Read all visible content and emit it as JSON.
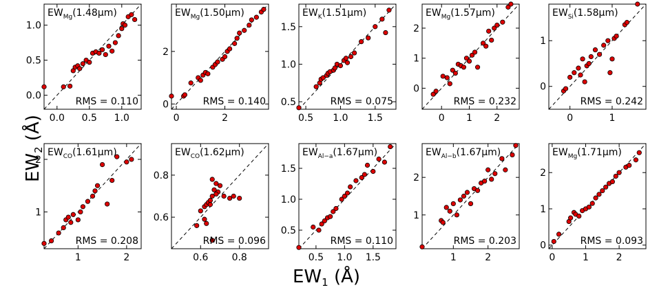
{
  "figure": {
    "ylabel_main": "EW",
    "ylabel_sub": "2",
    "ylabel_unit": "(Å)",
    "xlabel_main": "EW",
    "xlabel_sub": "1",
    "xlabel_unit": "(Å)"
  },
  "chart_data": [
    {
      "type": "scatter",
      "title_main": "EW",
      "title_sub": "Mg",
      "title_tail": "(1.48μm)",
      "rms_label": "RMS = 0.110",
      "xlim": [
        -0.2,
        1.3
      ],
      "ylim": [
        -0.2,
        1.3
      ],
      "xticks": [
        0.0,
        0.5,
        1.0
      ],
      "yticks": [
        0.0,
        0.5,
        1.0
      ],
      "xtick_labels": [
        "0.0",
        "0.5",
        "1.0"
      ],
      "ytick_labels": [
        "0.0",
        "0.5",
        "1.0"
      ],
      "x": [
        -0.2,
        0.1,
        0.2,
        0.25,
        0.28,
        0.32,
        0.35,
        0.4,
        0.45,
        0.5,
        0.55,
        0.6,
        0.65,
        0.7,
        0.75,
        0.8,
        0.85,
        0.9,
        0.95,
        1.0,
        1.02,
        1.05,
        1.1,
        1.15,
        1.2
      ],
      "y": [
        0.12,
        0.12,
        0.13,
        0.35,
        0.4,
        0.42,
        0.38,
        0.45,
        0.5,
        0.47,
        0.6,
        0.62,
        0.6,
        0.65,
        0.58,
        0.7,
        0.63,
        0.75,
        0.85,
        0.95,
        1.02,
        1.0,
        1.12,
        1.15,
        1.08
      ]
    },
    {
      "type": "scatter",
      "title_main": "EW",
      "title_sub": "Mg",
      "title_tail": "(1.50μm)",
      "rms_label": "RMS = 0.140",
      "xlim": [
        -0.2,
        3.8
      ],
      "ylim": [
        -0.2,
        3.8
      ],
      "xticks": [
        0,
        2
      ],
      "yticks": [
        0,
        2
      ],
      "xtick_labels": [
        "0",
        "2"
      ],
      "ytick_labels": [
        "0",
        "2"
      ],
      "x": [
        -0.2,
        0.3,
        0.35,
        0.6,
        0.9,
        1.0,
        1.1,
        1.2,
        1.3,
        1.5,
        1.6,
        1.7,
        1.9,
        2.0,
        2.1,
        2.2,
        2.4,
        2.5,
        2.6,
        2.8,
        3.0,
        3.1,
        3.3,
        3.5,
        3.6
      ],
      "y": [
        0.3,
        0.3,
        0.35,
        0.8,
        1.0,
        0.9,
        1.1,
        1.2,
        1.15,
        1.4,
        1.5,
        1.6,
        1.7,
        1.8,
        2.0,
        2.1,
        2.3,
        2.5,
        2.7,
        2.8,
        3.0,
        3.2,
        3.3,
        3.5,
        3.6
      ]
    },
    {
      "type": "scatter",
      "title_main": "EW",
      "title_sub": "K",
      "title_tail": "(1.51μm)",
      "rms_label": "RMS = 0.075",
      "xlim": [
        0.4,
        1.8
      ],
      "ylim": [
        0.4,
        1.8
      ],
      "xticks": [
        0.5,
        1.0,
        1.5
      ],
      "yticks": [
        0.5,
        1.0,
        1.5
      ],
      "xtick_labels": [
        "0.5",
        "1.0",
        "1.5"
      ],
      "ytick_labels": [
        "0.5",
        "1.0",
        "1.5"
      ],
      "x": [
        0.4,
        0.65,
        0.7,
        0.72,
        0.75,
        0.8,
        0.82,
        0.85,
        0.9,
        0.92,
        0.95,
        1.0,
        1.05,
        1.08,
        1.1,
        1.15,
        1.2,
        1.3,
        1.4,
        1.5,
        1.6,
        1.65,
        1.7
      ],
      "y": [
        0.42,
        0.7,
        0.75,
        0.8,
        0.82,
        0.85,
        0.88,
        0.9,
        0.92,
        0.95,
        1.0,
        0.98,
        1.05,
        1.08,
        1.02,
        1.1,
        1.15,
        1.3,
        1.35,
        1.5,
        1.6,
        1.42,
        1.72
      ]
    },
    {
      "type": "scatter",
      "title_main": "EW",
      "title_sub": "Mg",
      "title_tail": "(1.57μm)",
      "rms_label": "RMS = 0.232",
      "xlim": [
        -0.7,
        2.8
      ],
      "ylim": [
        -0.7,
        2.8
      ],
      "xticks": [
        0,
        1,
        2
      ],
      "yticks": [
        0,
        1,
        2
      ],
      "xtick_labels": [
        "0",
        "1",
        "2"
      ],
      "ytick_labels": [
        "0",
        "1",
        "2"
      ],
      "x": [
        -0.3,
        -0.2,
        0.05,
        0.2,
        0.3,
        0.4,
        0.5,
        0.6,
        0.7,
        0.8,
        0.9,
        1.0,
        1.1,
        1.2,
        1.3,
        1.5,
        1.6,
        1.7,
        1.8,
        1.9,
        2.0,
        2.2,
        2.4,
        2.5
      ],
      "y": [
        -0.2,
        -0.1,
        0.4,
        0.35,
        0.15,
        0.6,
        0.5,
        0.8,
        0.75,
        0.7,
        1.0,
        0.9,
        1.1,
        1.2,
        0.7,
        1.5,
        1.4,
        1.9,
        1.6,
        2.0,
        2.1,
        2.2,
        2.7,
        2.8
      ]
    },
    {
      "type": "scatter",
      "title_main": "EW",
      "title_sub": "Si",
      "title_tail": "(1.58μm)",
      "rms_label": "RMS = 0.242",
      "xlim": [
        -0.5,
        1.8
      ],
      "ylim": [
        -0.5,
        1.8
      ],
      "xticks": [
        0,
        1
      ],
      "yticks": [
        0,
        1
      ],
      "xtick_labels": [
        "0",
        "1"
      ],
      "ytick_labels": [
        "0",
        "1"
      ],
      "x": [
        -0.15,
        -0.1,
        0.0,
        0.1,
        0.2,
        0.25,
        0.3,
        0.35,
        0.4,
        0.45,
        0.5,
        0.6,
        0.7,
        0.8,
        0.9,
        0.95,
        1.0,
        1.05,
        1.1,
        1.3,
        1.35,
        1.6
      ],
      "y": [
        -0.1,
        -0.05,
        0.2,
        0.3,
        0.4,
        0.25,
        0.6,
        0.1,
        0.45,
        0.5,
        0.65,
        0.8,
        0.7,
        0.9,
        1.0,
        0.3,
        0.6,
        1.05,
        1.1,
        1.35,
        1.4,
        1.8
      ]
    },
    {
      "type": "scatter",
      "title_main": "EW",
      "title_sub": "CO",
      "title_tail": "(1.61μm)",
      "rms_label": "RMS = 0.208",
      "xlim": [
        0.3,
        2.3
      ],
      "ylim": [
        0.3,
        2.3
      ],
      "xticks": [
        1,
        2
      ],
      "yticks": [
        1,
        2
      ],
      "xtick_labels": [
        "1",
        "2"
      ],
      "ytick_labels": [
        "1",
        "2"
      ],
      "x": [
        0.3,
        0.45,
        0.6,
        0.7,
        0.75,
        0.8,
        0.85,
        0.9,
        1.0,
        1.05,
        1.1,
        1.2,
        1.3,
        1.35,
        1.4,
        1.5,
        1.6,
        1.7,
        1.8,
        2.0,
        2.1
      ],
      "y": [
        0.4,
        0.45,
        0.6,
        0.7,
        0.85,
        0.9,
        0.8,
        0.95,
        0.85,
        1.0,
        1.1,
        1.2,
        1.3,
        1.4,
        1.5,
        1.9,
        1.15,
        1.6,
        2.05,
        1.95,
        2.0
      ]
    },
    {
      "type": "scatter",
      "title_main": "EW",
      "title_sub": "CO",
      "title_tail": "(1.62μm)",
      "rms_label": "RMS = 0.096",
      "xlim": [
        0.45,
        0.95
      ],
      "ylim": [
        0.45,
        0.95
      ],
      "xticks": [
        0.6,
        0.8
      ],
      "yticks": [
        0.6,
        0.8
      ],
      "xtick_labels": [
        "0.6",
        "0.8"
      ],
      "ytick_labels": [
        "0.6",
        "0.8"
      ],
      "x": [
        0.58,
        0.6,
        0.62,
        0.63,
        0.64,
        0.65,
        0.66,
        0.67,
        0.68,
        0.69,
        0.7,
        0.72,
        0.75,
        0.77,
        0.8,
        0.63,
        0.62,
        0.65,
        0.66,
        0.68,
        0.66
      ],
      "y": [
        0.56,
        0.63,
        0.65,
        0.66,
        0.67,
        0.68,
        0.7,
        0.73,
        0.76,
        0.72,
        0.75,
        0.7,
        0.69,
        0.7,
        0.69,
        0.57,
        0.59,
        0.66,
        0.78,
        0.71,
        0.49
      ]
    },
    {
      "type": "scatter",
      "title_main": "EW",
      "title_sub": "Al−a",
      "title_tail": "(1.67μm)",
      "rms_label": "RMS = 0.110",
      "xlim": [
        0.2,
        1.9
      ],
      "ylim": [
        0.2,
        1.9
      ],
      "xticks": [
        0.5,
        1.0,
        1.5
      ],
      "yticks": [
        0.5,
        1.0,
        1.5
      ],
      "xtick_labels": [
        "0.5",
        "1.0",
        "1.5"
      ],
      "ytick_labels": [
        "0.5",
        "1.0",
        "1.5"
      ],
      "x": [
        0.2,
        0.45,
        0.55,
        0.6,
        0.65,
        0.7,
        0.75,
        0.8,
        0.85,
        0.95,
        1.0,
        1.05,
        1.1,
        1.2,
        1.3,
        1.35,
        1.4,
        1.5,
        1.6,
        1.7,
        1.8
      ],
      "y": [
        0.22,
        0.55,
        0.5,
        0.6,
        0.65,
        0.7,
        0.72,
        0.8,
        0.85,
        1.0,
        1.05,
        1.1,
        1.2,
        1.3,
        1.35,
        1.4,
        1.55,
        1.45,
        1.65,
        1.6,
        1.85
      ]
    },
    {
      "type": "scatter",
      "title_main": "EW",
      "title_sub": "Al−b",
      "title_tail": "(1.67μm)",
      "rms_label": "RMS = 0.203",
      "xlim": [
        0.1,
        2.9
      ],
      "ylim": [
        0.1,
        2.9
      ],
      "xticks": [
        1,
        2
      ],
      "yticks": [
        1,
        2
      ],
      "xtick_labels": [
        "1",
        "2"
      ],
      "ytick_labels": [
        "1",
        "2"
      ],
      "x": [
        0.1,
        0.65,
        0.7,
        0.8,
        0.9,
        1.0,
        1.1,
        1.2,
        1.3,
        1.4,
        1.5,
        1.6,
        1.7,
        1.8,
        1.9,
        2.0,
        2.1,
        2.2,
        2.4,
        2.5,
        2.7,
        2.8
      ],
      "y": [
        0.15,
        0.85,
        0.8,
        1.2,
        1.1,
        1.3,
        1.0,
        1.4,
        1.5,
        1.6,
        1.3,
        1.7,
        1.65,
        1.85,
        1.9,
        2.2,
        1.95,
        2.1,
        2.5,
        2.2,
        2.6,
        2.85
      ]
    },
    {
      "type": "scatter",
      "title_main": "EW",
      "title_sub": "Mg",
      "title_tail": "(1.71μm)",
      "rms_label": "RMS = 0.093",
      "xlim": [
        -0.1,
        2.8
      ],
      "ylim": [
        -0.1,
        2.8
      ],
      "xticks": [
        0,
        1,
        2
      ],
      "yticks": [
        0,
        1,
        2
      ],
      "xtick_labels": [
        "0",
        "1",
        "2"
      ],
      "ytick_labels": [
        "0",
        "1",
        "2"
      ],
      "x": [
        0.05,
        0.2,
        0.5,
        0.55,
        0.65,
        0.7,
        0.8,
        0.9,
        1.0,
        1.1,
        1.2,
        1.3,
        1.4,
        1.5,
        1.6,
        1.7,
        1.8,
        1.9,
        2.0,
        2.2,
        2.3,
        2.5,
        2.6
      ],
      "y": [
        0.1,
        0.3,
        0.65,
        0.75,
        0.9,
        0.85,
        0.8,
        0.95,
        1.0,
        1.05,
        1.15,
        1.3,
        1.4,
        1.5,
        1.6,
        1.7,
        1.75,
        1.9,
        2.0,
        2.15,
        2.2,
        2.35,
        2.55
      ]
    }
  ]
}
